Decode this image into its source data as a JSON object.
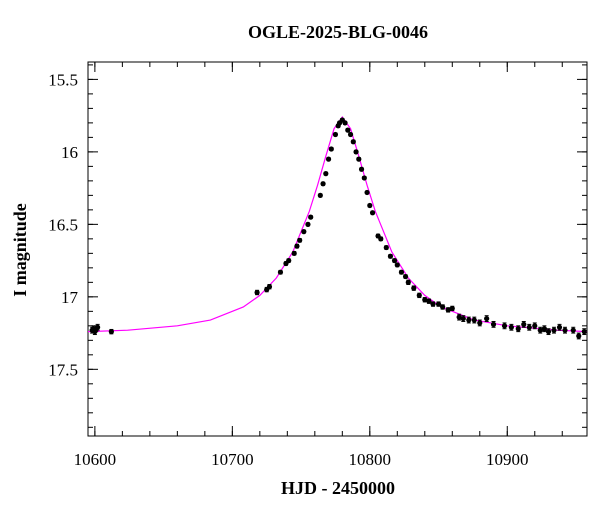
{
  "chart_data": {
    "type": "scatter",
    "title": "OGLE-2025-BLG-0046",
    "xlabel": "HJD - 2450000",
    "ylabel": "I magnitude",
    "color": "#000000",
    "x": [
      10598,
      10599,
      10600,
      10601,
      10602,
      10612,
      10718,
      10725,
      10727,
      10735,
      10739,
      10741,
      10745,
      10747,
      10749,
      10752,
      10755,
      10757,
      10764,
      10766,
      10768,
      10770,
      10772,
      10775,
      10777,
      10778,
      10780,
      10782,
      10784,
      10786,
      10788,
      10790,
      10792,
      10794,
      10796,
      10798,
      10800,
      10802,
      10806,
      10808,
      10812,
      10815,
      10818,
      10820,
      10823,
      10826,
      10828,
      10832,
      10836,
      10840,
      10843,
      10846,
      10850,
      10853,
      10857,
      10860,
      10865,
      10868,
      10872,
      10876,
      10880,
      10885,
      10890,
      10898,
      10903,
      10908,
      10912,
      10916,
      10920,
      10924,
      10927,
      10930,
      10934,
      10938,
      10942,
      10948,
      10952,
      10956
    ],
    "values": [
      17.23,
      17.22,
      17.24,
      17.22,
      17.21,
      17.24,
      16.97,
      16.95,
      16.93,
      16.83,
      16.77,
      16.75,
      16.7,
      16.65,
      16.61,
      16.55,
      16.5,
      16.45,
      16.3,
      16.22,
      16.15,
      16.05,
      15.98,
      15.88,
      15.82,
      15.8,
      15.78,
      15.8,
      15.85,
      15.88,
      15.93,
      16.0,
      16.05,
      16.12,
      16.18,
      16.28,
      16.37,
      16.42,
      16.58,
      16.6,
      16.66,
      16.72,
      16.75,
      16.78,
      16.83,
      16.86,
      16.9,
      16.94,
      16.99,
      17.02,
      17.03,
      17.05,
      17.05,
      17.07,
      17.09,
      17.08,
      17.14,
      17.15,
      17.16,
      17.16,
      17.18,
      17.15,
      17.19,
      17.2,
      17.21,
      17.22,
      17.19,
      17.21,
      17.2,
      17.23,
      17.22,
      17.24,
      17.23,
      17.21,
      17.23,
      17.23,
      17.27,
      17.24
    ],
    "errors": [
      0.02,
      0.02,
      0.02,
      0.02,
      0.02,
      0.015,
      0.015,
      0.015,
      0.015,
      0.012,
      0.012,
      0.012,
      0.012,
      0.012,
      0.012,
      0.01,
      0.01,
      0.01,
      0.01,
      0.01,
      0.01,
      0.01,
      0.01,
      0.01,
      0.01,
      0.01,
      0.01,
      0.01,
      0.01,
      0.01,
      0.01,
      0.01,
      0.01,
      0.01,
      0.01,
      0.01,
      0.01,
      0.01,
      0.012,
      0.012,
      0.012,
      0.012,
      0.012,
      0.012,
      0.012,
      0.012,
      0.015,
      0.015,
      0.015,
      0.015,
      0.015,
      0.015,
      0.015,
      0.015,
      0.015,
      0.015,
      0.02,
      0.02,
      0.02,
      0.02,
      0.02,
      0.02,
      0.02,
      0.02,
      0.02,
      0.02,
      0.02,
      0.02,
      0.02,
      0.02,
      0.02,
      0.02,
      0.02,
      0.02,
      0.02,
      0.02,
      0.02,
      0.02
    ],
    "model": {
      "type": "line",
      "color": "#ff00ff",
      "x": [
        10595,
        10624,
        10660,
        10684,
        10708,
        10720,
        10732,
        10744,
        10756,
        10762,
        10768,
        10774,
        10780,
        10786,
        10792,
        10798,
        10804,
        10816,
        10828,
        10840,
        10852,
        10876,
        10900,
        10936,
        10958
      ],
      "values": [
        17.24,
        17.23,
        17.2,
        17.16,
        17.07,
        16.99,
        16.87,
        16.69,
        16.41,
        16.23,
        16.03,
        15.84,
        15.76,
        15.84,
        16.03,
        16.23,
        16.41,
        16.69,
        16.87,
        16.99,
        17.07,
        17.16,
        17.2,
        17.23,
        17.24
      ]
    },
    "xlim": [
      10595,
      10958
    ],
    "ylim": [
      15.38,
      17.96
    ],
    "y_inverted": true,
    "xticks": [
      10600,
      10700,
      10800,
      10900
    ],
    "yticks": [
      15.5,
      16,
      16.5,
      17,
      17.5
    ],
    "x_minor_step": 20,
    "y_minor_step": 0.1
  }
}
